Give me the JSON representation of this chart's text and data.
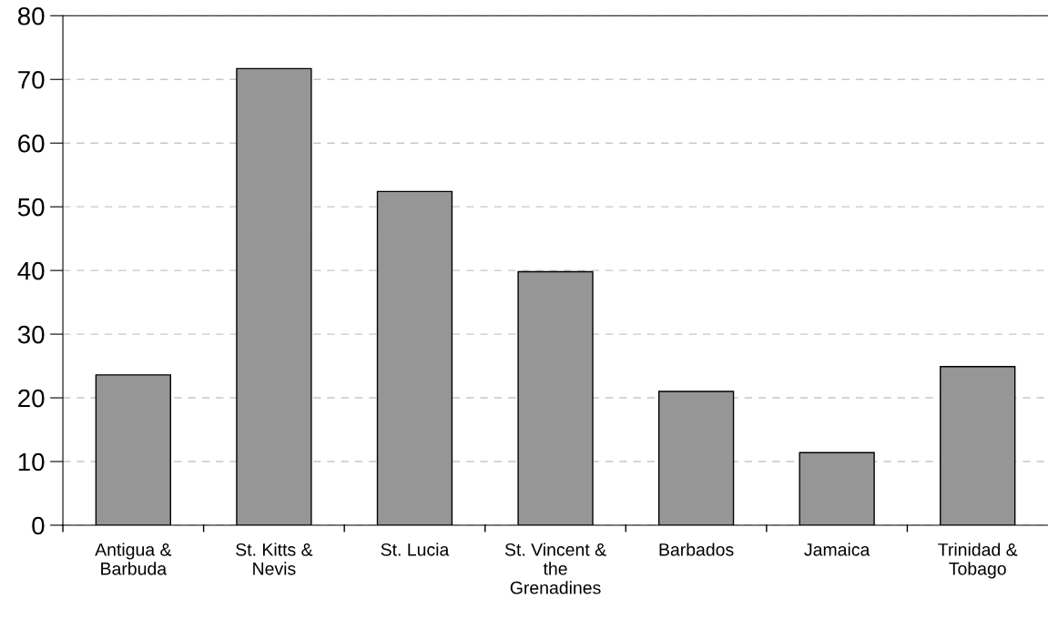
{
  "chart_data": {
    "type": "bar",
    "categories": [
      "Antigua &\nBarbuda",
      "St. Kitts &\nNevis",
      "St. Lucia",
      "St. Vincent &\nthe\nGrenadines",
      "Barbados",
      "Jamaica",
      "Trinidad &\nTobago"
    ],
    "values": [
      23.6,
      71.7,
      52.4,
      39.8,
      21.0,
      11.4,
      24.9
    ],
    "color": "#969696",
    "ylim": [
      0,
      80
    ],
    "yticks": [
      0,
      10,
      20,
      30,
      40,
      50,
      60,
      70,
      80
    ],
    "grid": "y"
  }
}
